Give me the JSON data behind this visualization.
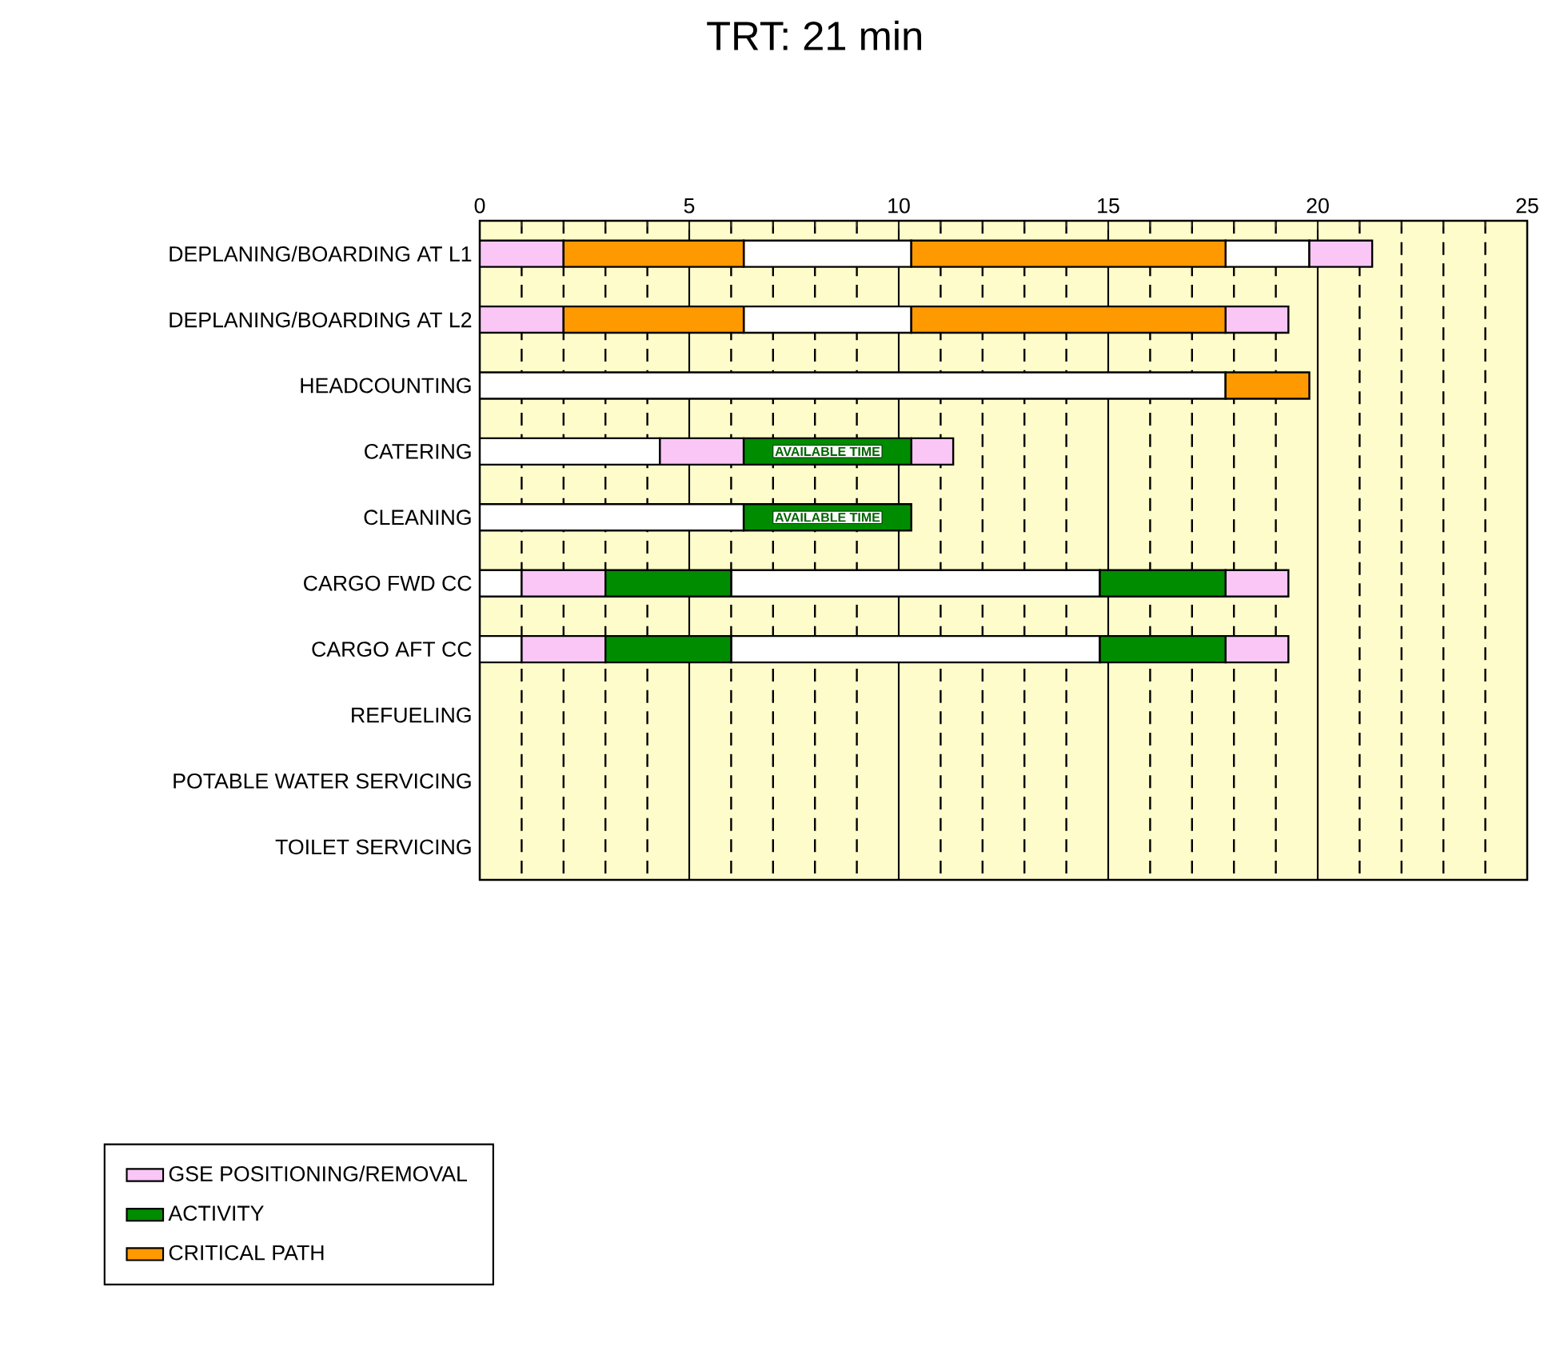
{
  "chart_data": {
    "type": "bar",
    "orientation": "horizontal",
    "title": "TRT: 21 min",
    "categories": [
      "DEPLANING/BOARDING AT L1",
      "DEPLANING/BOARDING AT L2",
      "HEADCOUNTING",
      "CATERING",
      "CLEANING",
      "CARGO FWD CC",
      "CARGO AFT CC",
      "REFUELING",
      "POTABLE WATER SERVICING",
      "TOILET SERVICING"
    ],
    "series": [
      {
        "color": "#ffffff",
        "base": [
          6.3,
          6.3,
          0,
          0,
          0,
          0,
          0,
          null,
          null,
          null
        ],
        "values": [
          4,
          4,
          17.8,
          4.3,
          6.3,
          1,
          1,
          null,
          null,
          null
        ]
      },
      {
        "color": "#ffffff",
        "base": [
          17.8,
          null,
          null,
          null,
          null,
          6,
          6,
          null,
          null,
          null
        ],
        "values": [
          2,
          null,
          null,
          null,
          null,
          8.8,
          8.8,
          null,
          null,
          null
        ]
      },
      {
        "name": "GSE POSITIONING/REMOVAL",
        "color": "#f9c6f6",
        "base": [
          0,
          0,
          null,
          4.3,
          null,
          1,
          1,
          null,
          null,
          null
        ],
        "values": [
          2,
          2,
          null,
          2,
          null,
          2,
          2,
          null,
          null,
          null
        ]
      },
      {
        "color": "#f9c6f6",
        "base": [
          19.8,
          17.8,
          null,
          10.3,
          null,
          17.8,
          17.8,
          null,
          null,
          null
        ],
        "values": [
          1.5,
          1.5,
          null,
          1,
          null,
          1.5,
          1.5,
          null,
          null,
          null
        ]
      },
      {
        "name": "ACTIVITY",
        "color": "#008c00",
        "base": [
          null,
          null,
          null,
          6.3,
          6.3,
          3,
          3,
          null,
          null,
          null
        ],
        "values": [
          null,
          null,
          null,
          4,
          4,
          3,
          3,
          null,
          null,
          null
        ]
      },
      {
        "color": "#008c00",
        "base": [
          null,
          null,
          null,
          null,
          null,
          14.8,
          14.8,
          null,
          null,
          null
        ],
        "values": [
          null,
          null,
          null,
          null,
          null,
          3,
          3,
          null,
          null,
          null
        ]
      },
      {
        "name": "CRITICAL PATH",
        "color": "#ff9900",
        "base": [
          2,
          2,
          17.8,
          null,
          null,
          null,
          null,
          null,
          null,
          null
        ],
        "values": [
          4.3,
          4.3,
          2,
          null,
          null,
          null,
          null,
          null,
          null,
          null
        ]
      },
      {
        "color": "#ff9900",
        "base": [
          10.3,
          10.3,
          null,
          null,
          null,
          null,
          null,
          null,
          null,
          null
        ],
        "values": [
          7.5,
          7.5,
          null,
          null,
          null,
          null,
          null,
          null,
          null,
          null
        ]
      }
    ],
    "xlim": [
      0,
      25
    ],
    "xticks": [
      0,
      {
        "value": 1,
        "label": null
      },
      {
        "value": 2,
        "label": null
      },
      {
        "value": 3,
        "label": null
      },
      {
        "value": 4,
        "label": null
      },
      5,
      {
        "value": 6,
        "label": null
      },
      {
        "value": 7,
        "label": null
      },
      {
        "value": 8,
        "label": null
      },
      {
        "value": 9,
        "label": null
      },
      10,
      {
        "value": 11,
        "label": null
      },
      {
        "value": 12,
        "label": null
      },
      {
        "value": 13,
        "label": null
      },
      {
        "value": 14,
        "label": null
      },
      15,
      {
        "value": 16,
        "label": null
      },
      {
        "value": 17,
        "label": null
      },
      {
        "value": 18,
        "label": null
      },
      {
        "value": 19,
        "label": null
      },
      20,
      {
        "value": 21,
        "label": null
      },
      {
        "value": 22,
        "label": null
      },
      {
        "value": 23,
        "label": null
      },
      {
        "value": 24,
        "label": null
      },
      25
    ],
    "grid": "x",
    "legend": "bottom left",
    "annotations": [
      "AVAILABLE TIME",
      "AVAILABLE TIME"
    ]
  }
}
